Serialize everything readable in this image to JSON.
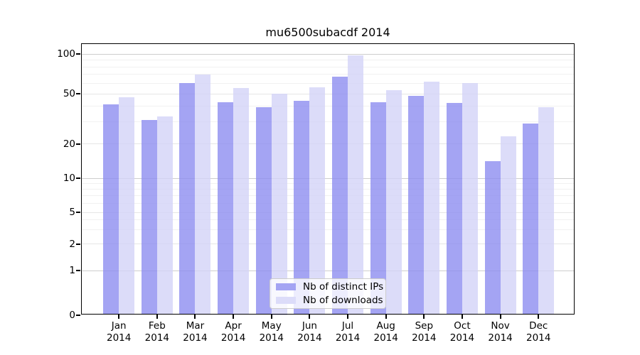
{
  "chart_data": {
    "type": "bar",
    "title": "mu6500subacdf 2014",
    "categories": [
      "Jan",
      "Feb",
      "Mar",
      "Apr",
      "May",
      "Jun",
      "Jul",
      "Aug",
      "Sep",
      "Oct",
      "Nov",
      "Dec"
    ],
    "year_label": "2014",
    "series": [
      {
        "name": "Nb of distinct IPs",
        "color": "#a4a4f3",
        "values": [
          41,
          31,
          60,
          43,
          39,
          44,
          67,
          43,
          48,
          42,
          14,
          29
        ]
      },
      {
        "name": "Nb of downloads",
        "color": "#dcdcf9",
        "values": [
          47,
          33,
          70,
          55,
          50,
          56,
          98,
          53,
          62,
          60,
          23,
          39
        ]
      }
    ],
    "y_ticks": [
      100,
      50,
      20,
      10,
      5,
      2,
      1,
      0
    ],
    "ylim": [
      0,
      110
    ],
    "yscale": "symlog",
    "grid": "horizontal",
    "legend_position": "bottom-center"
  }
}
